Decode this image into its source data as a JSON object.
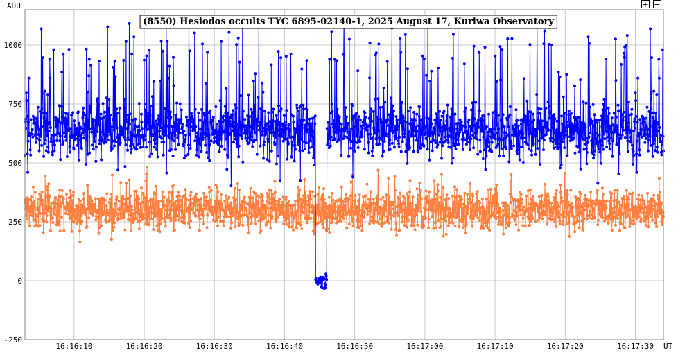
{
  "controls": {
    "zoom_in_label": "+",
    "zoom_out_label": "−"
  },
  "chart_data": {
    "type": "line",
    "title": "(8550) Hesiodos occults TYC 6895-02140-1, 2025 August 17, Kuriwa Observatory",
    "ylabel": "ADU",
    "xlabel": "UT",
    "ylim": [
      -250,
      1150
    ],
    "xlim": [
      "16:16:03",
      "16:17:34"
    ],
    "y_ticks": [
      1000,
      750,
      500,
      250,
      0,
      -250
    ],
    "x_ticks": [
      "16:16:10",
      "16:16:20",
      "16:16:30",
      "16:16:40",
      "16:16:50",
      "16:17:00",
      "16:17:10",
      "16:17:20",
      "16:17:30"
    ],
    "grid": true,
    "series": [
      {
        "color": "#0000ff",
        "note_values": "target star flux, ~640 ADU mean, ±150 noise, spikes to ~1100",
        "baseline": 640,
        "occultation": {
          "start": "16:16:44.4",
          "end": "16:16:46.0",
          "level": 0
        }
      },
      {
        "color": "#ff7f3f",
        "baseline": 300
      }
    ]
  }
}
